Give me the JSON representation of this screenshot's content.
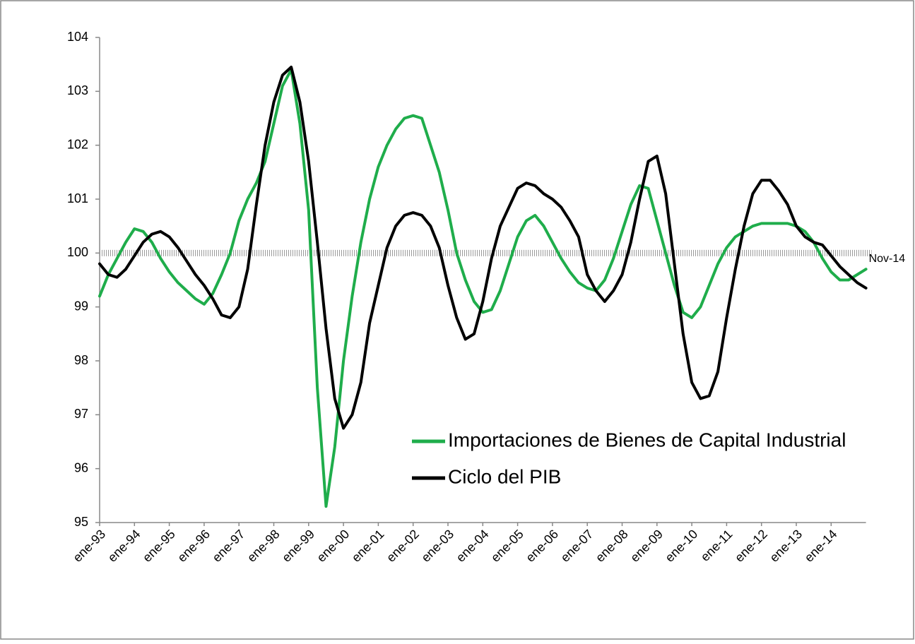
{
  "chart_data": {
    "type": "line",
    "categories": [
      "ene-93",
      null,
      null,
      null,
      "ene-94",
      null,
      null,
      null,
      "ene-95",
      null,
      null,
      null,
      "ene-96",
      null,
      null,
      null,
      "ene-97",
      null,
      null,
      null,
      "ene-98",
      null,
      null,
      null,
      "ene-99",
      null,
      null,
      null,
      "ene-00",
      null,
      null,
      null,
      "ene-01",
      null,
      null,
      null,
      "ene-02",
      null,
      null,
      null,
      "ene-03",
      null,
      null,
      null,
      "ene-04",
      null,
      null,
      null,
      "ene-05",
      null,
      null,
      null,
      "ene-06",
      null,
      null,
      null,
      "ene-07",
      null,
      null,
      null,
      "ene-08",
      null,
      null,
      null,
      "ene-09",
      null,
      null,
      null,
      "ene-10",
      null,
      null,
      null,
      "ene-11",
      null,
      null,
      null,
      "ene-12",
      null,
      null,
      null,
      "ene-13",
      null,
      null,
      null,
      "ene-14",
      null,
      null,
      null,
      null
    ],
    "series": [
      {
        "name": "Importaciones de Bienes de Capital Industrial",
        "color": "#1fad4b",
        "values": [
          99.2,
          99.6,
          99.9,
          100.2,
          100.45,
          100.4,
          100.2,
          99.9,
          99.65,
          99.45,
          99.3,
          99.15,
          99.05,
          99.25,
          99.6,
          100.0,
          100.6,
          101.0,
          101.3,
          101.7,
          102.4,
          103.1,
          103.4,
          102.4,
          100.8,
          97.5,
          95.3,
          96.4,
          98.0,
          99.2,
          100.2,
          101.0,
          101.6,
          102.0,
          102.3,
          102.5,
          102.55,
          102.5,
          102.0,
          101.5,
          100.8,
          100.0,
          99.5,
          99.1,
          98.9,
          98.95,
          99.3,
          99.8,
          100.3,
          100.6,
          100.7,
          100.5,
          100.2,
          99.9,
          99.65,
          99.45,
          99.35,
          99.3,
          99.5,
          99.9,
          100.4,
          100.9,
          101.25,
          101.2,
          100.6,
          100.0,
          99.4,
          98.9,
          98.8,
          99.0,
          99.4,
          99.8,
          100.1,
          100.3,
          100.4,
          100.5,
          100.55,
          100.55,
          100.55,
          100.55,
          100.5,
          100.4,
          100.2,
          99.9,
          99.65,
          99.5,
          99.5,
          99.6,
          99.7
        ]
      },
      {
        "name": "Ciclo del PIB",
        "color": "#000000",
        "values": [
          99.8,
          99.6,
          99.55,
          99.7,
          99.95,
          100.2,
          100.35,
          100.4,
          100.3,
          100.1,
          99.85,
          99.6,
          99.4,
          99.15,
          98.85,
          98.8,
          99.0,
          99.7,
          100.9,
          102.0,
          102.8,
          103.3,
          103.45,
          102.8,
          101.7,
          100.2,
          98.6,
          97.3,
          96.75,
          97.0,
          97.6,
          98.7,
          99.4,
          100.1,
          100.5,
          100.7,
          100.75,
          100.7,
          100.5,
          100.1,
          99.4,
          98.8,
          98.4,
          98.5,
          99.1,
          99.9,
          100.5,
          100.85,
          101.2,
          101.3,
          101.25,
          101.1,
          101.0,
          100.85,
          100.6,
          100.3,
          99.6,
          99.3,
          99.1,
          99.3,
          99.6,
          100.2,
          101.0,
          101.7,
          101.8,
          101.1,
          99.8,
          98.5,
          97.6,
          97.3,
          97.35,
          97.8,
          98.8,
          99.7,
          100.5,
          101.1,
          101.35,
          101.35,
          101.15,
          100.9,
          100.5,
          100.3,
          100.2,
          100.15,
          99.95,
          99.75,
          99.6,
          99.45,
          99.35
        ]
      }
    ],
    "ylim": [
      95,
      104
    ],
    "yticks": [
      95,
      96,
      97,
      98,
      99,
      100,
      101,
      102,
      103,
      104
    ],
    "reference_line": 100,
    "annotation": "Nov-14"
  }
}
